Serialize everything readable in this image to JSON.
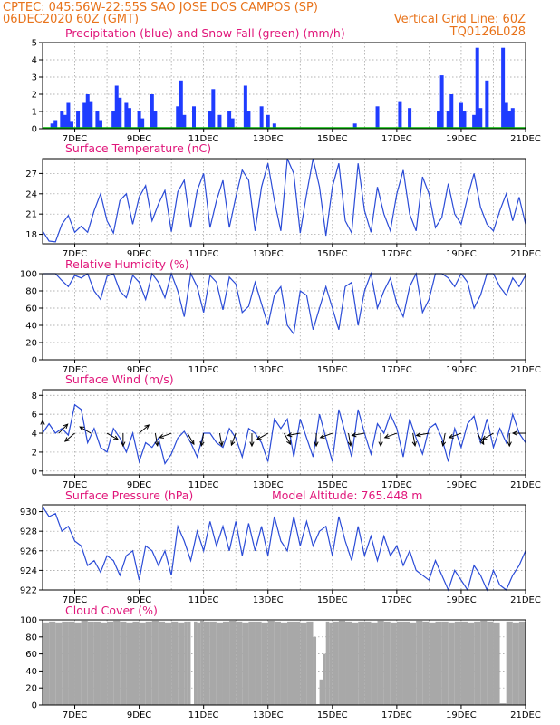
{
  "header": {
    "line1_left": "CPTEC:   045:56W-22:55S  SAO JOSE DOS CAMPOS (SP)",
    "line2_left": "06DEC2020 60Z (GMT)",
    "line2_right": "Vertical Grid Line: 60Z",
    "line3_right": "TQ0126L028"
  },
  "colors": {
    "header": "#e8731b",
    "panel_title": "#e0167a",
    "precipitation": "#1f3cff",
    "snowfall": "#00b400",
    "line": "#2a4bd7",
    "cloud": "#a8a8a8"
  },
  "x_axis": {
    "tick_labels": [
      "7DEC",
      "9DEC",
      "11DEC",
      "13DEC",
      "15DEC",
      "17DEC",
      "19DEC",
      "21DEC"
    ],
    "tick_days": [
      7,
      9,
      11,
      13,
      15,
      17,
      19,
      21
    ],
    "range_days": [
      6,
      21
    ],
    "vertical_gridlines_days": [
      7,
      8,
      9,
      10,
      11,
      12,
      13,
      14,
      15,
      16,
      17,
      18,
      19,
      20
    ]
  },
  "chart_data": [
    {
      "type": "bar",
      "id": "precip",
      "title": "Precipitation (blue) and Snow Fall (green) (mm/h)",
      "ylim": [
        0,
        5
      ],
      "yticks": [
        0,
        1,
        2,
        3,
        4,
        5
      ],
      "grid": true,
      "series": [
        {
          "name": "Precipitation",
          "x_days": [
            6.3,
            6.4,
            6.6,
            6.7,
            6.8,
            6.9,
            7.1,
            7.3,
            7.4,
            7.5,
            7.7,
            7.8,
            8.2,
            8.3,
            8.4,
            8.6,
            8.7,
            9.0,
            9.1,
            9.4,
            9.5,
            10.2,
            10.3,
            10.4,
            10.7,
            11.2,
            11.3,
            11.5,
            11.8,
            11.9,
            12.3,
            12.4,
            12.8,
            13.0,
            13.2,
            15.7,
            16.4,
            17.1,
            17.4,
            18.3,
            18.4,
            18.6,
            18.7,
            19.0,
            19.1,
            19.4,
            19.5,
            19.6,
            19.8,
            20.3,
            20.4,
            20.5,
            20.6
          ],
          "values": [
            0.3,
            0.5,
            1.0,
            0.8,
            1.5,
            0.4,
            1.0,
            1.5,
            2.0,
            1.6,
            1.0,
            0.5,
            1.0,
            2.5,
            1.8,
            1.5,
            1.2,
            1.0,
            0.6,
            2.0,
            1.0,
            1.3,
            2.8,
            0.8,
            1.3,
            1.0,
            2.3,
            0.8,
            1.0,
            0.6,
            2.5,
            1.0,
            1.3,
            0.8,
            0.3,
            0.3,
            1.3,
            1.6,
            1.2,
            1.0,
            3.1,
            1.0,
            2.0,
            1.5,
            1.0,
            0.8,
            4.7,
            1.2,
            2.8,
            4.7,
            1.5,
            1.0,
            1.2
          ]
        },
        {
          "name": "Snow Fall",
          "constant_value": 0
        }
      ]
    },
    {
      "type": "line",
      "id": "temperature",
      "title": "Surface Temperature (nC)",
      "ylim": [
        16.6,
        29.2
      ],
      "yticks": [
        18,
        21,
        24,
        27
      ],
      "grid": true,
      "x_days": [
        6.0,
        6.2,
        6.4,
        6.6,
        6.8,
        7.0,
        7.2,
        7.4,
        7.6,
        7.8,
        8.0,
        8.2,
        8.4,
        8.6,
        8.8,
        9.0,
        9.2,
        9.4,
        9.6,
        9.8,
        10.0,
        10.2,
        10.4,
        10.6,
        10.8,
        11.0,
        11.2,
        11.4,
        11.6,
        11.8,
        12.0,
        12.2,
        12.4,
        12.6,
        12.8,
        13.0,
        13.2,
        13.4,
        13.6,
        13.8,
        14.0,
        14.2,
        14.4,
        14.6,
        14.8,
        15.0,
        15.2,
        15.4,
        15.6,
        15.8,
        16.0,
        16.2,
        16.4,
        16.6,
        16.8,
        17.0,
        17.2,
        17.4,
        17.6,
        17.8,
        18.0,
        18.2,
        18.4,
        18.6,
        18.8,
        19.0,
        19.2,
        19.4,
        19.6,
        19.8,
        20.0,
        20.2,
        20.4,
        20.6,
        20.8,
        21.0
      ],
      "values": [
        18.5,
        17.0,
        16.9,
        19.5,
        20.8,
        18.3,
        19.2,
        18.3,
        21.5,
        24.0,
        20.0,
        18.2,
        23.0,
        24.0,
        19.5,
        23.5,
        25.2,
        20.0,
        22.5,
        24.5,
        18.4,
        24.3,
        26.0,
        19.0,
        24.5,
        27.0,
        19.0,
        23.0,
        26.0,
        19.0,
        23.5,
        27.5,
        26.0,
        18.5,
        25.0,
        28.5,
        23.0,
        18.5,
        29.2,
        27.0,
        18.2,
        24.0,
        29.2,
        25.0,
        17.8,
        25.0,
        28.5,
        20.0,
        18.2,
        28.5,
        21.5,
        18.3,
        25.0,
        21.0,
        18.5,
        24.0,
        27.5,
        21.0,
        18.5,
        26.5,
        24.0,
        19.0,
        20.5,
        25.5,
        21.0,
        19.5,
        23.5,
        27.0,
        22.0,
        19.5,
        18.5,
        21.5,
        24.0,
        20.0,
        23.5,
        19.5
      ]
    },
    {
      "type": "line",
      "id": "humidity",
      "title": "Relative Humidity (%)",
      "ylim": [
        0,
        100
      ],
      "yticks": [
        0,
        20,
        40,
        60,
        80,
        100
      ],
      "grid": true,
      "x_days": [
        6.0,
        6.2,
        6.4,
        6.6,
        6.8,
        7.0,
        7.2,
        7.4,
        7.6,
        7.8,
        8.0,
        8.2,
        8.4,
        8.6,
        8.8,
        9.0,
        9.2,
        9.4,
        9.6,
        9.8,
        10.0,
        10.2,
        10.4,
        10.6,
        10.8,
        11.0,
        11.2,
        11.4,
        11.6,
        11.8,
        12.0,
        12.2,
        12.4,
        12.6,
        12.8,
        13.0,
        13.2,
        13.4,
        13.6,
        13.8,
        14.0,
        14.2,
        14.4,
        14.6,
        14.8,
        15.0,
        15.2,
        15.4,
        15.6,
        15.8,
        16.0,
        16.2,
        16.4,
        16.6,
        16.8,
        17.0,
        17.2,
        17.4,
        17.6,
        17.8,
        18.0,
        18.2,
        18.4,
        18.6,
        18.8,
        19.0,
        19.2,
        19.4,
        19.6,
        19.8,
        20.0,
        20.2,
        20.4,
        20.6,
        20.8,
        21.0
      ],
      "values": [
        100,
        100,
        100,
        92,
        85,
        98,
        95,
        100,
        80,
        70,
        97,
        100,
        80,
        72,
        98,
        90,
        70,
        100,
        90,
        72,
        100,
        80,
        50,
        100,
        85,
        55,
        98,
        90,
        58,
        96,
        88,
        55,
        62,
        90,
        65,
        40,
        75,
        85,
        40,
        30,
        80,
        75,
        35,
        60,
        85,
        60,
        35,
        85,
        90,
        40,
        80,
        100,
        60,
        80,
        95,
        65,
        50,
        85,
        100,
        55,
        70,
        100,
        100,
        95,
        85,
        100,
        90,
        60,
        75,
        100,
        100,
        85,
        75,
        95,
        85,
        98
      ]
    },
    {
      "type": "line",
      "id": "wind",
      "title": "Surface Wind (m/s)",
      "ylim": [
        -0.4,
        8.6
      ],
      "yticks": [
        0,
        2,
        4,
        6,
        8
      ],
      "grid": true,
      "x_days": [
        6.0,
        6.2,
        6.4,
        6.6,
        6.8,
        7.0,
        7.2,
        7.4,
        7.6,
        7.8,
        8.0,
        8.2,
        8.4,
        8.6,
        8.8,
        9.0,
        9.2,
        9.4,
        9.6,
        9.8,
        10.0,
        10.2,
        10.4,
        10.6,
        10.8,
        11.0,
        11.2,
        11.4,
        11.6,
        11.8,
        12.0,
        12.2,
        12.4,
        12.6,
        12.8,
        13.0,
        13.2,
        13.4,
        13.6,
        13.8,
        14.0,
        14.2,
        14.4,
        14.6,
        14.8,
        15.0,
        15.2,
        15.4,
        15.6,
        15.8,
        16.0,
        16.2,
        16.4,
        16.6,
        16.8,
        17.0,
        17.2,
        17.4,
        17.6,
        17.8,
        18.0,
        18.2,
        18.4,
        18.6,
        18.8,
        19.0,
        19.2,
        19.4,
        19.6,
        19.8,
        20.0,
        20.2,
        20.4,
        20.6,
        20.8,
        21.0
      ],
      "values": [
        4.0,
        5.0,
        4.0,
        4.5,
        3.8,
        7.0,
        6.5,
        3.0,
        4.5,
        2.5,
        2.0,
        4.5,
        3.5,
        2.0,
        4.0,
        1.0,
        3.0,
        2.5,
        3.5,
        0.8,
        1.8,
        3.5,
        4.2,
        3.0,
        1.5,
        4.0,
        4.0,
        3.0,
        2.5,
        4.5,
        3.5,
        1.5,
        4.5,
        4.0,
        3.0,
        1.0,
        5.5,
        4.5,
        5.5,
        1.5,
        5.5,
        3.5,
        1.5,
        6.0,
        3.5,
        1.0,
        6.5,
        4.0,
        1.5,
        6.5,
        4.0,
        1.8,
        5.0,
        4.0,
        6.0,
        4.5,
        1.5,
        5.5,
        3.5,
        1.8,
        4.5,
        5.0,
        3.5,
        1.0,
        4.5,
        2.5,
        5.0,
        5.8,
        3.0,
        5.5,
        2.5,
        4.5,
        3.0,
        6.0,
        4.0,
        3.0
      ],
      "wind_vectors": {
        "x_days": [
          6.0,
          6.5,
          7.0,
          7.5,
          8.0,
          8.5,
          9.0,
          9.5,
          10.0,
          10.5,
          11.0,
          11.5,
          12.0,
          12.5,
          13.0,
          13.5,
          14.0,
          14.5,
          15.0,
          15.5,
          16.0,
          16.5,
          17.0,
          17.5,
          18.0,
          18.5,
          19.0,
          19.5,
          20.0,
          20.5,
          21.0
        ],
        "dir_deg": [
          90,
          45,
          220,
          150,
          330,
          270,
          40,
          280,
          200,
          300,
          260,
          280,
          250,
          270,
          210,
          300,
          190,
          270,
          200,
          280,
          190,
          270,
          200,
          280,
          190,
          260,
          200,
          300,
          210,
          270,
          180
        ]
      }
    },
    {
      "type": "line",
      "id": "pressure",
      "title": "Surface Pressure (hPa)",
      "annotation": "Model Altitude: 765.448 m",
      "ylim": [
        922,
        930.7
      ],
      "yticks": [
        922,
        924,
        926,
        928,
        930
      ],
      "grid": true,
      "x_days": [
        6.0,
        6.2,
        6.4,
        6.6,
        6.8,
        7.0,
        7.2,
        7.4,
        7.6,
        7.8,
        8.0,
        8.2,
        8.4,
        8.6,
        8.8,
        9.0,
        9.2,
        9.4,
        9.6,
        9.8,
        10.0,
        10.2,
        10.4,
        10.6,
        10.8,
        11.0,
        11.2,
        11.4,
        11.6,
        11.8,
        12.0,
        12.2,
        12.4,
        12.6,
        12.8,
        13.0,
        13.2,
        13.4,
        13.6,
        13.8,
        14.0,
        14.2,
        14.4,
        14.6,
        14.8,
        15.0,
        15.2,
        15.4,
        15.6,
        15.8,
        16.0,
        16.2,
        16.4,
        16.6,
        16.8,
        17.0,
        17.2,
        17.4,
        17.6,
        17.8,
        18.0,
        18.2,
        18.4,
        18.6,
        18.8,
        19.0,
        19.2,
        19.4,
        19.6,
        19.8,
        20.0,
        20.2,
        20.4,
        20.6,
        20.8,
        21.0
      ],
      "values": [
        930.5,
        929.5,
        929.8,
        928.0,
        928.5,
        927.0,
        926.5,
        924.5,
        925.0,
        923.8,
        925.5,
        925.0,
        923.5,
        925.5,
        926.0,
        923.0,
        926.5,
        926.0,
        924.5,
        926.0,
        923.5,
        928.5,
        927.0,
        925.0,
        928.0,
        926.0,
        929.0,
        926.5,
        928.5,
        926.0,
        929.0,
        925.5,
        928.8,
        926.0,
        928.5,
        925.5,
        929.5,
        927.0,
        926.0,
        929.5,
        926.5,
        929.0,
        926.5,
        928.0,
        928.5,
        925.5,
        929.5,
        927.0,
        925.0,
        928.5,
        925.5,
        927.5,
        925.0,
        927.5,
        925.5,
        926.5,
        924.5,
        926.0,
        924.0,
        923.5,
        923.0,
        925.0,
        923.5,
        921.5,
        924.0,
        923.0,
        921.5,
        924.5,
        923.5,
        921.5,
        924.0,
        922.5,
        922.0,
        923.5,
        924.5,
        926.0
      ]
    },
    {
      "type": "bar",
      "id": "cloud",
      "title": "Cloud Cover (%)",
      "ylim": [
        0,
        100
      ],
      "yticks": [
        0,
        20,
        40,
        60,
        80,
        100
      ],
      "grid": true,
      "x_days": [
        6.0,
        6.2,
        6.4,
        6.6,
        6.8,
        7.0,
        7.2,
        7.4,
        7.6,
        7.8,
        8.0,
        8.2,
        8.4,
        8.6,
        8.8,
        9.0,
        9.2,
        9.4,
        9.6,
        9.8,
        10.0,
        10.2,
        10.4,
        10.5,
        10.6,
        10.7,
        10.8,
        10.9,
        11.0,
        11.2,
        11.4,
        11.6,
        11.8,
        12.0,
        12.2,
        12.4,
        12.6,
        12.8,
        13.0,
        13.2,
        13.4,
        13.6,
        13.8,
        14.0,
        14.2,
        14.4,
        14.5,
        14.6,
        14.7,
        14.8,
        14.9,
        15.0,
        15.2,
        15.4,
        15.6,
        15.8,
        16.0,
        16.2,
        16.4,
        16.6,
        16.8,
        17.0,
        17.2,
        17.4,
        17.6,
        17.8,
        18.0,
        18.2,
        18.4,
        18.6,
        18.8,
        19.0,
        19.2,
        19.4,
        19.6,
        19.8,
        20.0,
        20.2,
        20.4,
        20.6,
        20.8
      ],
      "values": [
        97,
        98,
        97,
        98,
        98,
        97,
        99,
        98,
        98,
        97,
        98,
        99,
        98,
        97,
        98,
        97,
        98,
        99,
        98,
        97,
        98,
        97,
        98,
        98,
        1,
        98,
        97,
        99,
        98,
        98,
        97,
        98,
        99,
        98,
        97,
        98,
        98,
        97,
        99,
        98,
        97,
        98,
        98,
        97,
        98,
        80,
        1,
        30,
        60,
        98,
        97,
        98,
        99,
        98,
        97,
        98,
        98,
        97,
        99,
        98,
        97,
        98,
        98,
        97,
        99,
        98,
        97,
        98,
        98,
        97,
        98,
        98,
        97,
        98,
        99,
        98,
        97,
        2,
        98,
        97,
        98
      ]
    }
  ]
}
